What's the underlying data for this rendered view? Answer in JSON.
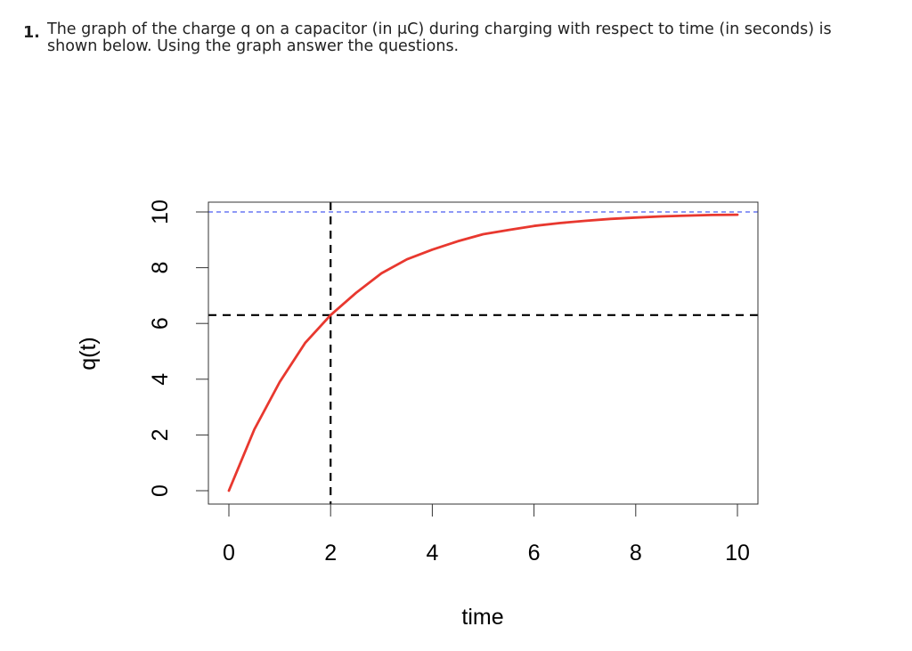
{
  "question": {
    "number": "1.",
    "lines": [
      "The graph of the charge q on a capacitor (in μC) during charging with respect to time (in seconds) is",
      "shown below. Using the graph answer the questions."
    ]
  },
  "chart_data": {
    "type": "line",
    "title": "",
    "xlabel": "time",
    "ylabel": "q(t)",
    "xlim": [
      0,
      10
    ],
    "ylim": [
      0,
      10
    ],
    "x_ticks": [
      "0",
      "2",
      "4",
      "6",
      "8",
      "10"
    ],
    "y_ticks": [
      "0",
      "2",
      "4",
      "6",
      "8",
      "10"
    ],
    "series": [
      {
        "color": "#e8382f",
        "x": [
          0,
          0.5,
          1,
          1.5,
          2,
          2.5,
          3,
          3.5,
          4,
          4.5,
          5,
          5.5,
          6,
          6.5,
          7,
          7.5,
          8,
          8.5,
          9,
          9.5,
          10
        ],
        "y": [
          0,
          2.2,
          3.9,
          5.3,
          6.3,
          7.1,
          7.8,
          8.3,
          8.65,
          8.95,
          9.2,
          9.35,
          9.5,
          9.6,
          9.68,
          9.75,
          9.8,
          9.84,
          9.87,
          9.89,
          9.9
        ]
      }
    ],
    "reference_lines": [
      {
        "orientation": "horizontal",
        "value": 10,
        "style": "dashed",
        "color": "#4a5cf0"
      },
      {
        "orientation": "horizontal",
        "value": 6.3,
        "style": "dashed",
        "color": "#000000"
      },
      {
        "orientation": "vertical",
        "value": 2,
        "style": "dashed",
        "color": "#000000"
      }
    ],
    "grid": false,
    "legend": "none"
  }
}
